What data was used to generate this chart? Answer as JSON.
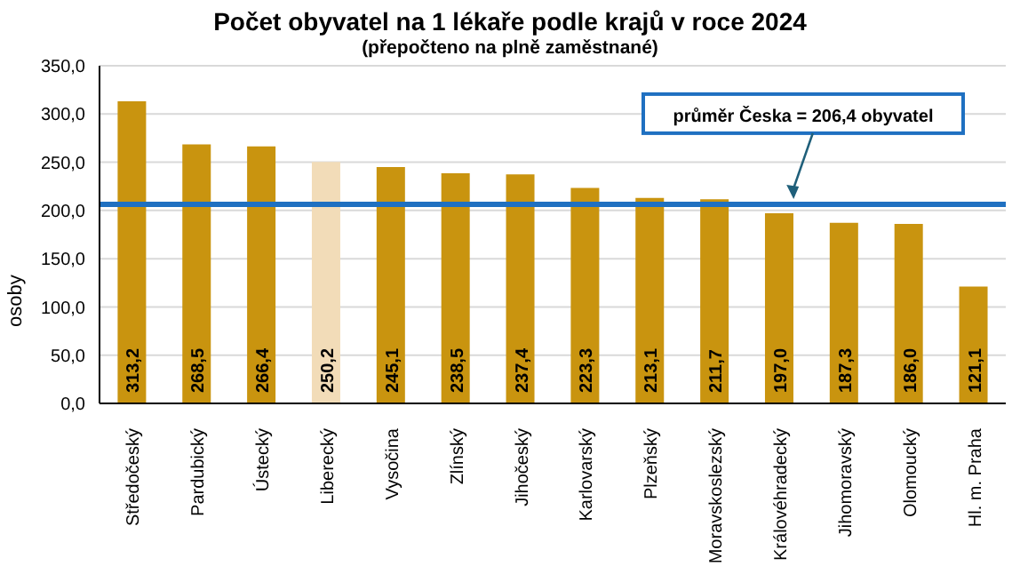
{
  "chart_data": {
    "type": "bar",
    "title": "Počet obyvatel na 1 lékaře podle krajů v roce 2024",
    "subtitle": "(přepočteno na plně zaměstnané)",
    "ylabel": "osoby",
    "categories": [
      "Středočeský",
      "Pardubický",
      "Ústecký",
      "Liberecký",
      "Vysočina",
      "Zlínský",
      "Jihočeský",
      "Karlovarský",
      "Plzeňský",
      "Moravskoslezský",
      "Královéhradecký",
      "Jihomoravský",
      "Olomoucký",
      "Hl. m. Praha"
    ],
    "values": [
      313.2,
      268.5,
      266.4,
      250.2,
      245.1,
      238.5,
      237.4,
      223.3,
      213.1,
      211.7,
      197.0,
      187.3,
      186.0,
      121.1
    ],
    "colors": [
      "#c9940f",
      "#c9940f",
      "#c9940f",
      "#f2dcb8",
      "#c9940f",
      "#c9940f",
      "#c9940f",
      "#c9940f",
      "#c9940f",
      "#c9940f",
      "#c9940f",
      "#c9940f",
      "#c9940f",
      "#c9940f"
    ],
    "ylim": [
      0,
      350
    ],
    "yticks": [
      {
        "value": 0,
        "label": "0,0"
      },
      {
        "value": 50,
        "label": "50,0"
      },
      {
        "value": 100,
        "label": "100,0"
      },
      {
        "value": 150,
        "label": "150,0"
      },
      {
        "value": 200,
        "label": "200,0"
      },
      {
        "value": 250,
        "label": "250,0"
      },
      {
        "value": 300,
        "label": "300,0"
      },
      {
        "value": 350,
        "label": "350,0"
      }
    ],
    "value_labels": [
      "313,2",
      "268,5",
      "266,4",
      "250,2",
      "245,1",
      "238,5",
      "237,4",
      "223,3",
      "213,1",
      "211,7",
      "197,0",
      "187,3",
      "186,0",
      "121,1"
    ],
    "grid": "y",
    "legend": false,
    "ref_lines": [
      {
        "axis": "y",
        "value": 206.4,
        "label": "průměr Česka = 206,4 obyvatel",
        "color": "#1f70c1"
      }
    ]
  }
}
